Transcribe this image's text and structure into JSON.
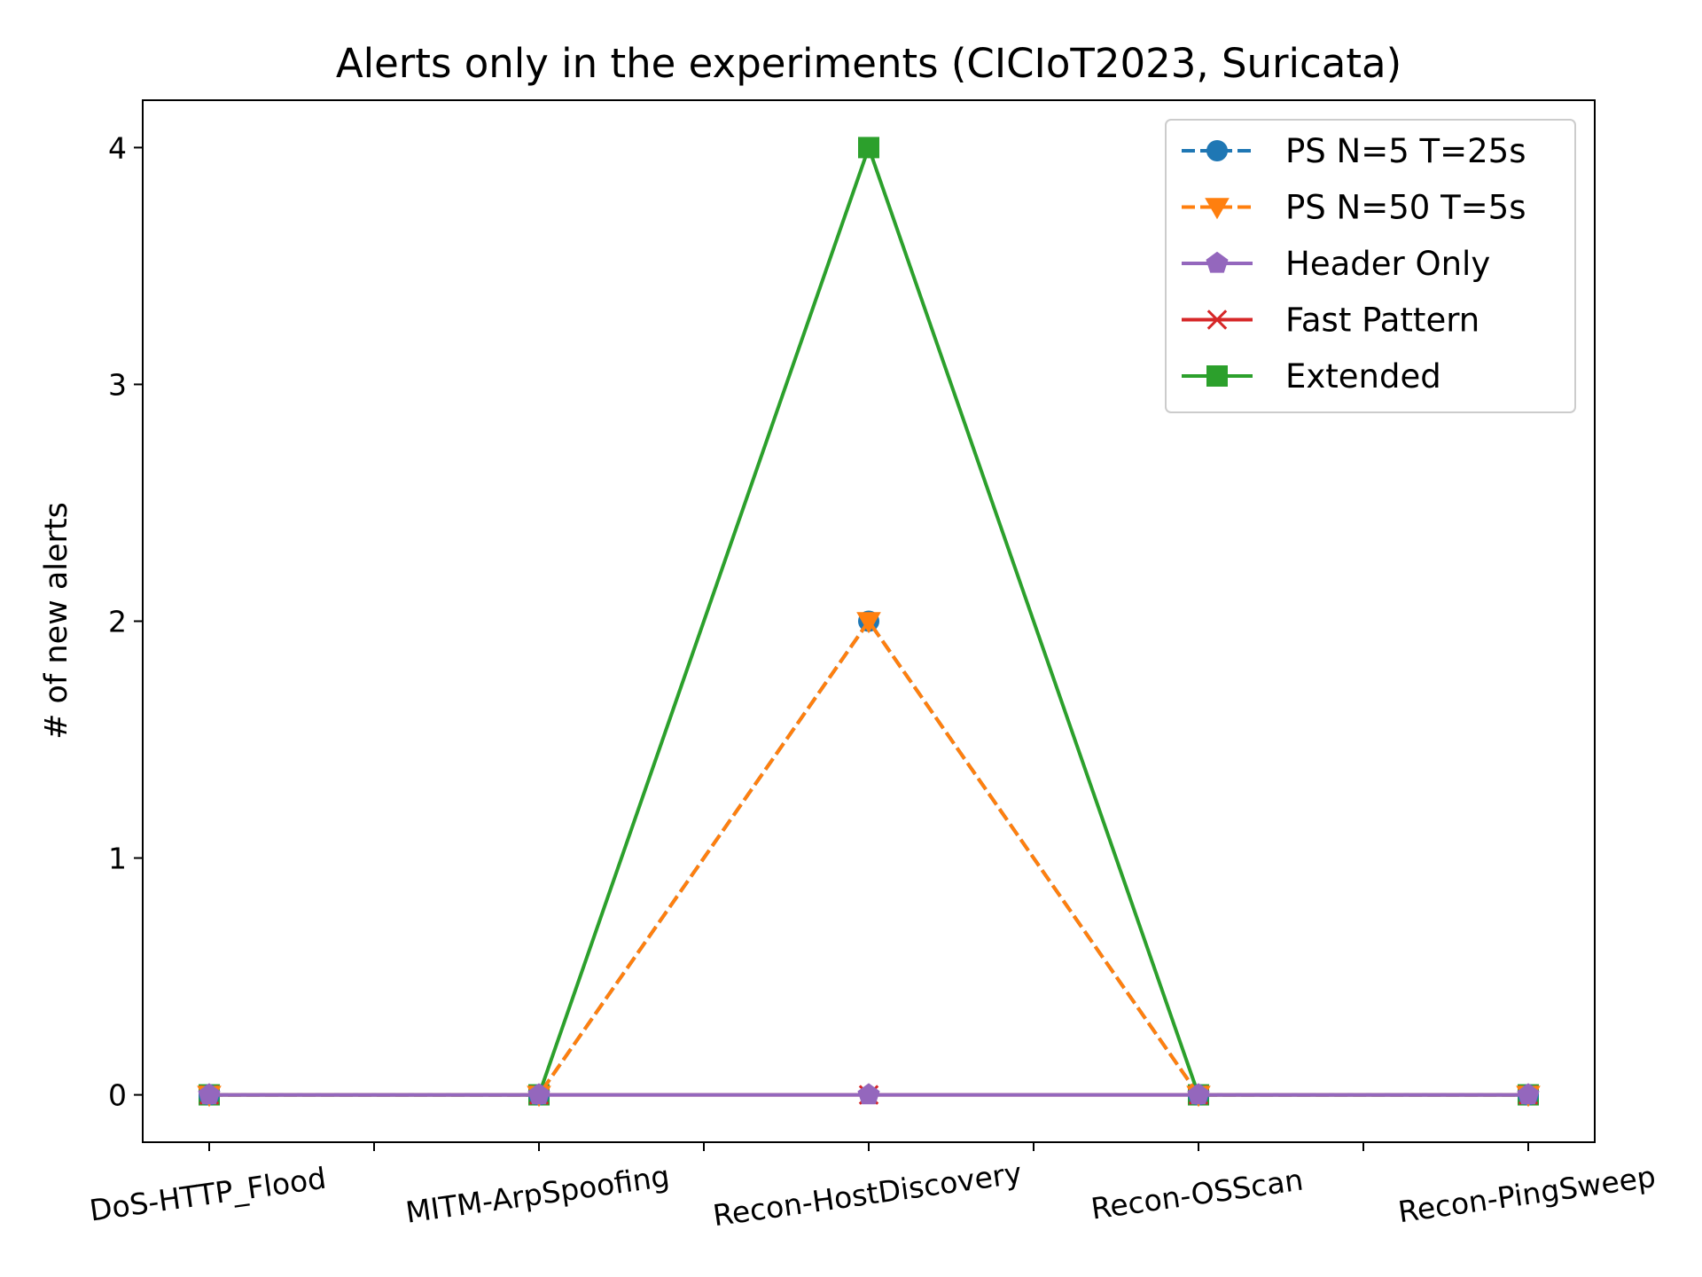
{
  "chart_data": {
    "type": "line",
    "title": "Alerts only in the experiments (CICIoT2023, Suricata)",
    "xlabel": "",
    "ylabel": "# of new alerts",
    "categories": [
      "DoS-HTTP_Flood",
      "MITM-ArpSpoofing",
      "Recon-HostDiscovery",
      "Recon-OSScan",
      "Recon-PingSweep"
    ],
    "ylim": [
      -0.2,
      4.2
    ],
    "yticks": [
      0,
      1,
      2,
      3,
      4
    ],
    "x_tick_rotation_deg": -8,
    "grid": false,
    "legend_position": "top-right",
    "series": [
      {
        "name": "PS N=5 T=25s",
        "values": [
          0,
          0,
          2,
          0,
          0
        ],
        "color": "#1f77b4",
        "marker": "circle",
        "line_style": "dashed"
      },
      {
        "name": "PS N=50 T=5s",
        "values": [
          0,
          0,
          2,
          0,
          0
        ],
        "color": "#ff7f0e",
        "marker": "triangle-down",
        "line_style": "dashed"
      },
      {
        "name": "Header Only",
        "values": [
          0,
          0,
          0,
          0,
          0
        ],
        "color": "#9467bd",
        "marker": "pentagon",
        "line_style": "solid"
      },
      {
        "name": "Fast Pattern",
        "values": [
          0,
          0,
          0,
          0,
          0
        ],
        "color": "#d62728",
        "marker": "x",
        "line_style": "solid"
      },
      {
        "name": "Extended",
        "values": [
          0,
          0,
          4,
          0,
          0
        ],
        "color": "#2ca02c",
        "marker": "square",
        "line_style": "solid"
      }
    ],
    "draw_order": [
      4,
      3,
      0,
      1,
      2
    ]
  }
}
